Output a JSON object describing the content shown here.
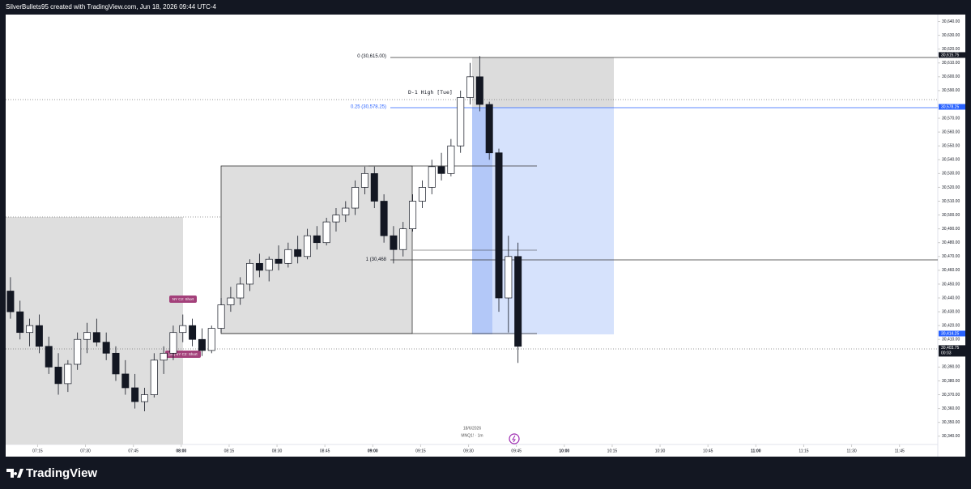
{
  "chart_data": {
    "type": "candlestick",
    "title": "SilverBullets95 created with TradingView.com, Jun 18, 2026 09:44 UTC-4",
    "brand": "TradingView",
    "symbol_date": "18/6/2026",
    "symbol": "MNQ1! · 1m",
    "x": [
      "07:05",
      "07:08",
      "07:11",
      "07:14",
      "07:17",
      "07:20",
      "07:23",
      "07:26",
      "07:29",
      "07:32",
      "07:35",
      "07:38",
      "07:41",
      "07:44",
      "07:47",
      "07:50",
      "07:53",
      "07:56",
      "07:59",
      "08:02",
      "08:05",
      "08:08",
      "08:11",
      "08:14",
      "08:17",
      "08:20",
      "08:23",
      "08:26",
      "08:29",
      "08:32",
      "08:35",
      "08:38",
      "08:41",
      "08:44",
      "08:47",
      "08:50",
      "08:53",
      "08:56",
      "08:59",
      "09:02",
      "09:05",
      "09:08",
      "09:11",
      "09:14",
      "09:17",
      "09:20",
      "09:23",
      "09:26",
      "09:29",
      "09:32",
      "09:35",
      "09:38",
      "09:41",
      "09:44"
    ],
    "open": [
      30445,
      30430,
      30415,
      30420,
      30405,
      30390,
      30378,
      30392,
      30410,
      30415,
      30408,
      30400,
      30385,
      30375,
      30365,
      30370,
      30395,
      30400,
      30415,
      30420,
      30410,
      30402,
      30418,
      30435,
      30440,
      30450,
      30465,
      30460,
      30468,
      30465,
      30475,
      30470,
      30485,
      30480,
      30495,
      30500,
      30505,
      30520,
      30530,
      30510,
      30485,
      30475,
      30490,
      30510,
      30520,
      30535,
      30530,
      30550,
      30585,
      30600,
      30580,
      30545,
      30440,
      30470
    ],
    "high": [
      30455,
      30438,
      30425,
      30428,
      30412,
      30400,
      30395,
      30415,
      30422,
      30425,
      30415,
      30405,
      30395,
      30385,
      30375,
      30400,
      30405,
      30420,
      30428,
      30425,
      30418,
      30420,
      30440,
      30448,
      30455,
      30468,
      30472,
      30470,
      30478,
      30480,
      30485,
      30490,
      30492,
      30498,
      30505,
      30510,
      30525,
      30535,
      30535,
      30515,
      30492,
      30495,
      30515,
      30525,
      30540,
      30545,
      30555,
      30590,
      30610,
      30615,
      30582,
      30548,
      30485,
      30480
    ],
    "low": [
      30425,
      30410,
      30405,
      30400,
      30385,
      30370,
      30372,
      30388,
      30400,
      30405,
      30395,
      30380,
      30370,
      30360,
      30358,
      30368,
      30385,
      30395,
      30408,
      30405,
      30398,
      30400,
      30415,
      30430,
      30435,
      30445,
      30455,
      30452,
      30460,
      30462,
      30465,
      30468,
      30475,
      30478,
      30488,
      30495,
      30500,
      30515,
      30505,
      30480,
      30465,
      30470,
      30488,
      30505,
      30515,
      30525,
      30528,
      30545,
      30580,
      30575,
      30540,
      30430,
      30415,
      30393
    ],
    "close": [
      30430,
      30415,
      30420,
      30405,
      30390,
      30378,
      30392,
      30410,
      30415,
      30408,
      30400,
      30385,
      30375,
      30365,
      30370,
      30395,
      30400,
      30415,
      30420,
      30410,
      30402,
      30418,
      30435,
      30440,
      30450,
      30465,
      30460,
      30468,
      30465,
      30475,
      30470,
      30485,
      30480,
      30495,
      30500,
      30505,
      30520,
      30530,
      30510,
      30485,
      30475,
      30490,
      30510,
      30520,
      30535,
      30530,
      30550,
      30585,
      30600,
      30580,
      30545,
      30440,
      30470,
      30405
    ],
    "xlim": [
      "07:05",
      "11:57"
    ],
    "xticks": [
      "07:15",
      "07:30",
      "07:45",
      "08:00",
      "08:15",
      "08:30",
      "08:45",
      "09:00",
      "09:15",
      "09:30",
      "09:45",
      "10:00",
      "10:15",
      "10:30",
      "10:45",
      "11:00",
      "11:15",
      "11:30",
      "11:45"
    ],
    "ylim": [
      30334,
      30645
    ],
    "yticks": [
      {
        "value": 30640,
        "label": "30,640.00"
      },
      {
        "value": 30630,
        "label": "30,630.00"
      },
      {
        "value": 30620,
        "label": "30,620.00"
      },
      {
        "value": 30610,
        "label": "30,610.00"
      },
      {
        "value": 30600,
        "label": "30,600.00"
      },
      {
        "value": 30590,
        "label": "30,590.00"
      },
      {
        "value": 30570,
        "label": "30,570.00"
      },
      {
        "value": 30560,
        "label": "30,560.00"
      },
      {
        "value": 30550,
        "label": "30,550.00"
      },
      {
        "value": 30540,
        "label": "30,540.00"
      },
      {
        "value": 30530,
        "label": "30,530.00"
      },
      {
        "value": 30520,
        "label": "30,520.00"
      },
      {
        "value": 30510,
        "label": "30,510.00"
      },
      {
        "value": 30500,
        "label": "30,500.00"
      },
      {
        "value": 30490,
        "label": "30,490.00"
      },
      {
        "value": 30480,
        "label": "30,480.00"
      },
      {
        "value": 30470,
        "label": "30,470.00"
      },
      {
        "value": 30460,
        "label": "30,460.00"
      },
      {
        "value": 30450,
        "label": "30,450.00"
      },
      {
        "value": 30440,
        "label": "30,440.00"
      },
      {
        "value": 30430,
        "label": "30,430.00"
      },
      {
        "value": 30420,
        "label": "30,420.00"
      },
      {
        "value": 30410,
        "label": "30,410.00"
      },
      {
        "value": 30390,
        "label": "30,390.00"
      },
      {
        "value": 30380,
        "label": "30,380.00"
      },
      {
        "value": 30370,
        "label": "30,370.00"
      },
      {
        "value": 30360,
        "label": "30,360.00"
      },
      {
        "value": 30350,
        "label": "30,350.00"
      },
      {
        "value": 30340,
        "label": "30,340.00"
      }
    ],
    "price_tags": [
      {
        "value": 30615.75,
        "label": "30,615.75",
        "color": "#131722"
      },
      {
        "value": 30578.25,
        "label": "30,578.25",
        "color": "#2962ff"
      },
      {
        "value": 30414.25,
        "label": "30,414.25",
        "color": "#2962ff"
      },
      {
        "value": 30403.75,
        "label": "30,403.75",
        "color": "#131722"
      }
    ],
    "countdown": "00:03",
    "fib_labels": [
      {
        "value": 30615,
        "label": "0 (30,615.00)"
      },
      {
        "value": 30578.25,
        "label": "0.25 (30,578.25)"
      },
      {
        "value": 30468,
        "label": "1 (30,468"
      }
    ],
    "level_label": "D-1 High [Tue]",
    "annotations": [
      "NY C2: Short",
      "[05] NY C2: Short"
    ]
  }
}
